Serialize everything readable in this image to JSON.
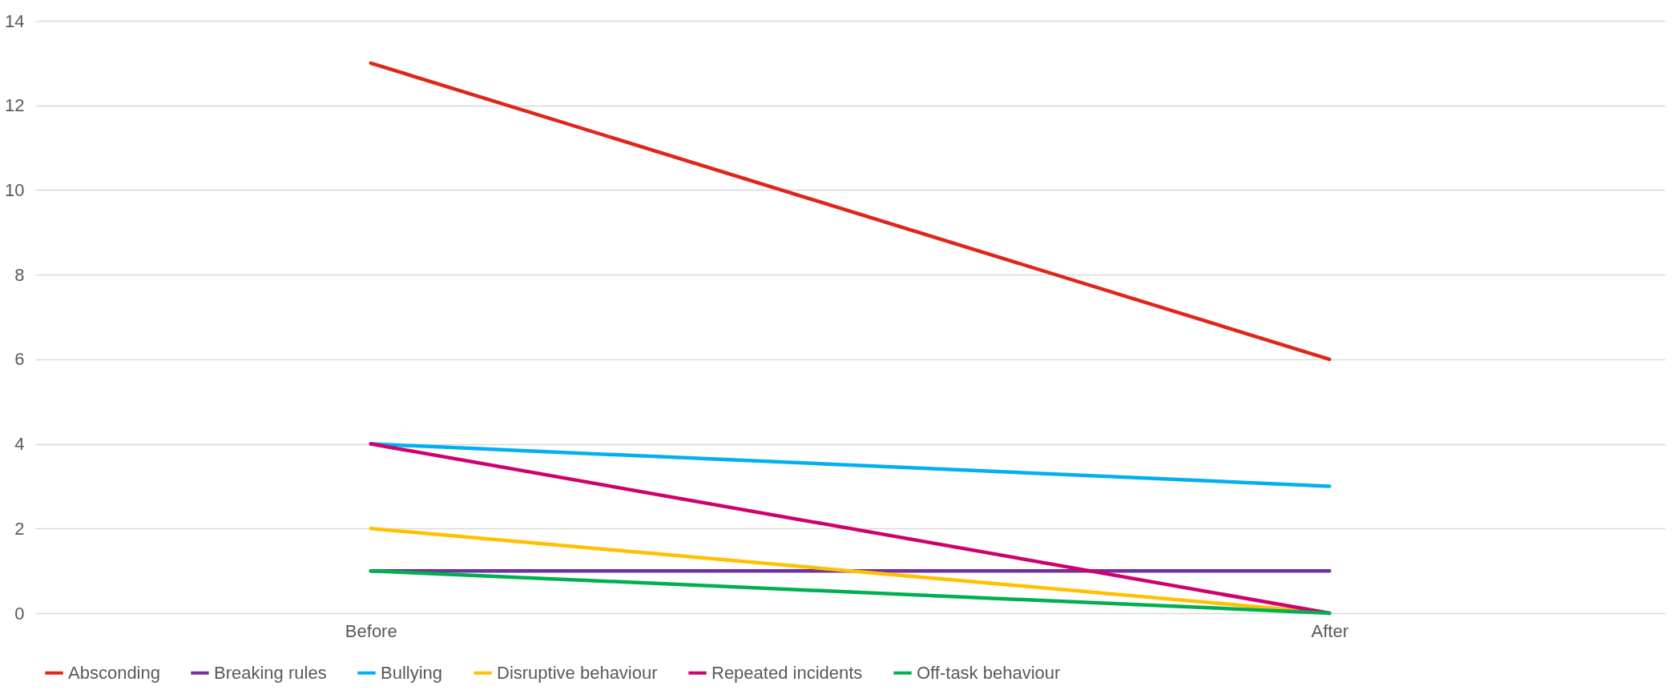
{
  "chart_data": {
    "type": "line",
    "categories": [
      "Before",
      "After"
    ],
    "series": [
      {
        "name": "Absconding",
        "color": "#e0251b",
        "values": [
          13,
          6
        ]
      },
      {
        "name": "Breaking rules",
        "color": "#7030a0",
        "values": [
          1,
          1
        ]
      },
      {
        "name": "Bullying",
        "color": "#00b0f0",
        "values": [
          4,
          3
        ]
      },
      {
        "name": "Disruptive behaviour",
        "color": "#ffc000",
        "values": [
          2,
          0
        ]
      },
      {
        "name": "Repeated incidents",
        "color": "#d0006f",
        "values": [
          4,
          0
        ]
      },
      {
        "name": "Off-task behaviour",
        "color": "#00b050",
        "values": [
          1,
          0
        ]
      }
    ],
    "ylim": [
      0,
      14
    ],
    "yticks": [
      0,
      2,
      4,
      6,
      8,
      10,
      12,
      14
    ],
    "grid": "y",
    "legend": "bottom",
    "marker": "none",
    "line_style": "solid"
  }
}
